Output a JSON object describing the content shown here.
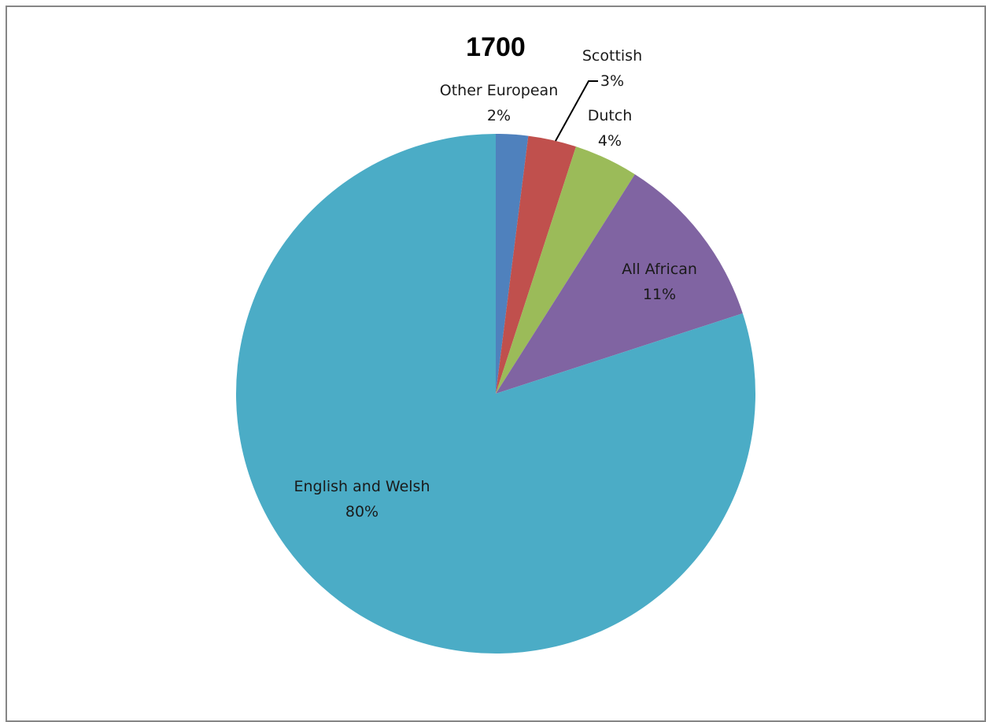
{
  "chart_data": {
    "type": "pie",
    "title": "1700",
    "start_angle_deg": 0,
    "direction": "clockwise",
    "categories": [
      "Other European",
      "Scottish",
      "Dutch",
      "All African",
      "English and Welsh"
    ],
    "values": [
      2,
      3,
      4,
      11,
      80
    ],
    "value_labels": [
      "2%",
      "3%",
      "4%",
      "11%",
      "80%"
    ],
    "colors": [
      "#4f81bd",
      "#c0504d",
      "#9bbb59",
      "#8064a2",
      "#4bacc6"
    ],
    "leader_line_for": [
      "Scottish"
    ],
    "legend": "none"
  }
}
